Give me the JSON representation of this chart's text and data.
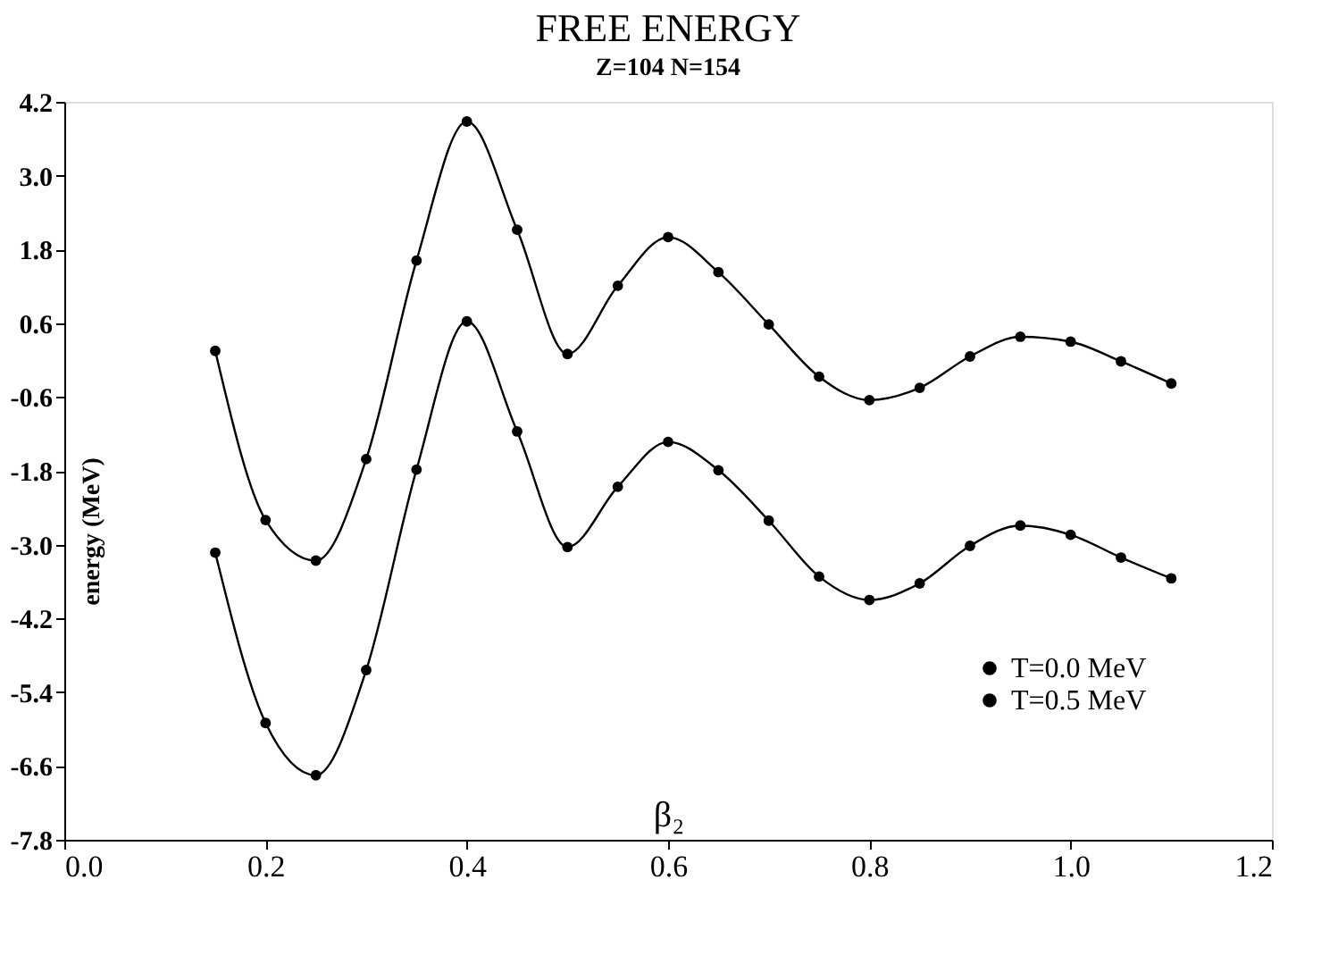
{
  "chart_data": {
    "type": "line",
    "title": "FREE ENERGY",
    "subtitle": "Z=104 N=154",
    "xlabel": "β₂",
    "ylabel": "energy (MeV)",
    "x": [
      0.15,
      0.2,
      0.25,
      0.3,
      0.35,
      0.4,
      0.45,
      0.5,
      0.55,
      0.6,
      0.65,
      0.7,
      0.75,
      0.8,
      0.85,
      0.9,
      0.95,
      1.0,
      1.05,
      1.1
    ],
    "series": [
      {
        "name": "T=0.0 MeV",
        "color": "#000000",
        "values": [
          0.15,
          -2.6,
          -3.26,
          -1.61,
          1.62,
          3.88,
          2.12,
          0.1,
          1.21,
          2.0,
          1.43,
          0.58,
          -0.27,
          -0.65,
          -0.45,
          0.06,
          0.38,
          0.3,
          -0.02,
          -0.38
        ]
      },
      {
        "name": "T=0.5 MeV",
        "color": "#000000",
        "values": [
          -3.13,
          -5.9,
          -6.75,
          -5.04,
          -1.78,
          0.63,
          -1.16,
          -3.04,
          -2.06,
          -1.33,
          -1.79,
          -2.61,
          -3.52,
          -3.9,
          -3.63,
          -3.02,
          -2.69,
          -2.84,
          -3.21,
          -3.55
        ]
      }
    ],
    "xlim": [
      0.0,
      1.2
    ],
    "xticks": [
      {
        "value": 0,
        "label": "0.0"
      },
      0.2,
      0.4,
      0.6,
      0.8,
      {
        "value": 1,
        "label": "1.0"
      },
      1.2
    ],
    "ylim": [
      -7.8,
      4.2
    ],
    "yticks": [
      -7.8,
      -6.6,
      -5.4,
      -4.2,
      {
        "value": -3,
        "label": "-3.0"
      },
      -1.8,
      -0.6,
      0.6,
      1.8,
      {
        "value": 3,
        "label": "3.0"
      },
      4.2
    ],
    "marker": "circle",
    "line_style": "solid",
    "legend": "bottom right",
    "grid": false
  }
}
